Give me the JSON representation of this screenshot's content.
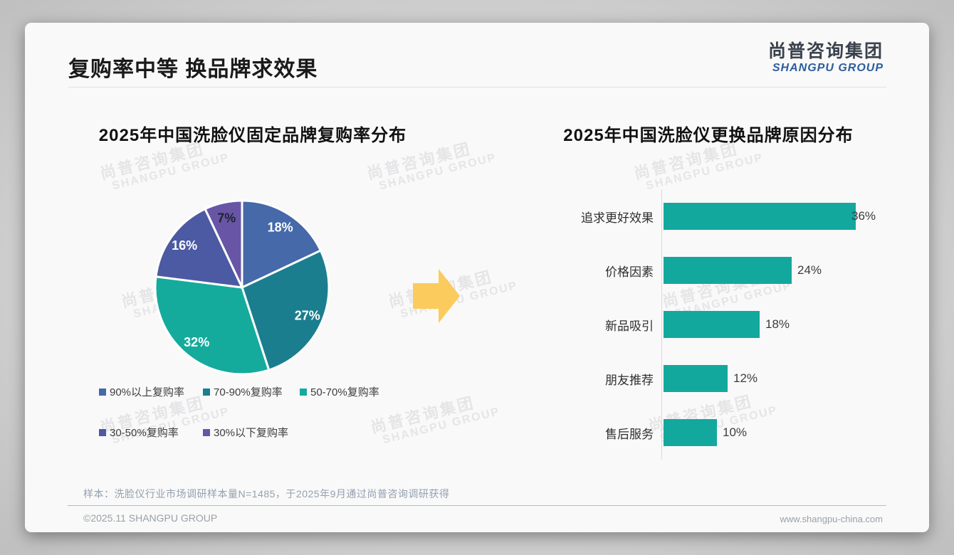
{
  "page": {
    "title": "复购率中等 换品牌求效果",
    "logo": {
      "cn": "尚普咨询集团",
      "en": "SHANGPU GROUP"
    },
    "watermark": {
      "cn": "尚普咨询集团",
      "en": "SHANGPU GROUP"
    },
    "footnote": "样本：洗脸仪行业市场调研样本量N=1485，于2025年9月通过尚普咨询调研获得",
    "footer": {
      "left": "©2025.11 SHANGPU GROUP",
      "right": "www.shangpu-china.com"
    }
  },
  "chart_data": [
    {
      "type": "pie",
      "title": "2025年中国洗脸仪固定品牌复购率分布",
      "labels": [
        "90%以上复购率",
        "70-90%复购率",
        "50-70%复购率",
        "30-50%复购率",
        "30%以下复购率"
      ],
      "values": [
        18,
        27,
        32,
        16,
        7
      ],
      "value_labels": [
        "18%",
        "27%",
        "32%",
        "16%",
        "7%"
      ],
      "colors": [
        "#4569A9",
        "#1B7E8F",
        "#14AB9D",
        "#4C5AA3",
        "#6955A6"
      ],
      "label_text_colors": [
        "#ffffff",
        "#ffffff",
        "#ffffff",
        "#ffffff",
        "#1f2430"
      ],
      "start_angle_deg": 0,
      "direction": "clockwise",
      "legend_position": "bottom"
    },
    {
      "type": "bar",
      "title": "2025年中国洗脸仪更换品牌原因分布",
      "orientation": "horizontal",
      "categories": [
        "追求更好效果",
        "价格因素",
        "新品吸引",
        "朋友推荐",
        "售后服务"
      ],
      "values": [
        36,
        24,
        18,
        12,
        10
      ],
      "value_labels": [
        "36%",
        "24%",
        "18%",
        "12%",
        "10%"
      ],
      "bar_color": "#13A89E",
      "axis_color": "#d8d8d8",
      "xlim": [
        0,
        36
      ],
      "grid": false
    }
  ],
  "misc": {
    "arrow_color": "#FBCB5D"
  }
}
